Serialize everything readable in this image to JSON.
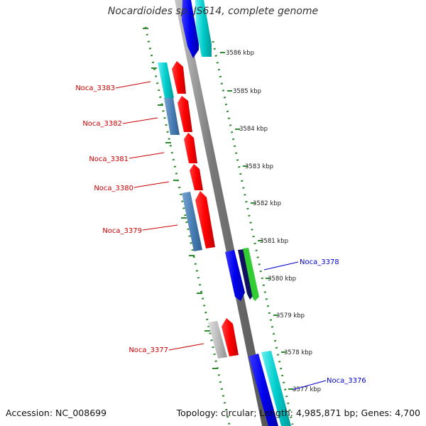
{
  "title": "Nocardioides sp. JS614, complete genome",
  "footer": {
    "accession": "Accession: NC_008699",
    "topology": "Topology: circular; Length: 4,985,871 bp; Genes: 4,700"
  },
  "colors": {
    "forward_red": "#ff0000",
    "reverse_blue": "#0000ee",
    "steelblue": "#4a7fb5",
    "cyan": "#00cccc",
    "navy": "#101060",
    "green": "#33cc33",
    "gray": "#bdbdbd",
    "dotted_track": "#2e8b2e",
    "label_red": "#cc0000",
    "label_blue": "#0000cc"
  },
  "ticks": [
    "3586 kbp",
    "3585 kbp",
    "3584 kbp",
    "3583 kbp",
    "3582 kbp",
    "3581 kbp",
    "3580 kbp",
    "3579 kbp",
    "3578 kbp",
    "3577 kbp"
  ],
  "gene_labels": [
    {
      "name": "Noca_3383",
      "color": "red"
    },
    {
      "name": "Noca_3382",
      "color": "red"
    },
    {
      "name": "Noca_3381",
      "color": "red"
    },
    {
      "name": "Noca_3380",
      "color": "red"
    },
    {
      "name": "Noca_3379",
      "color": "red"
    },
    {
      "name": "Noca_3378",
      "color": "blue"
    },
    {
      "name": "Noca_3377",
      "color": "red"
    },
    {
      "name": "Noca_3376",
      "color": "blue"
    }
  ]
}
